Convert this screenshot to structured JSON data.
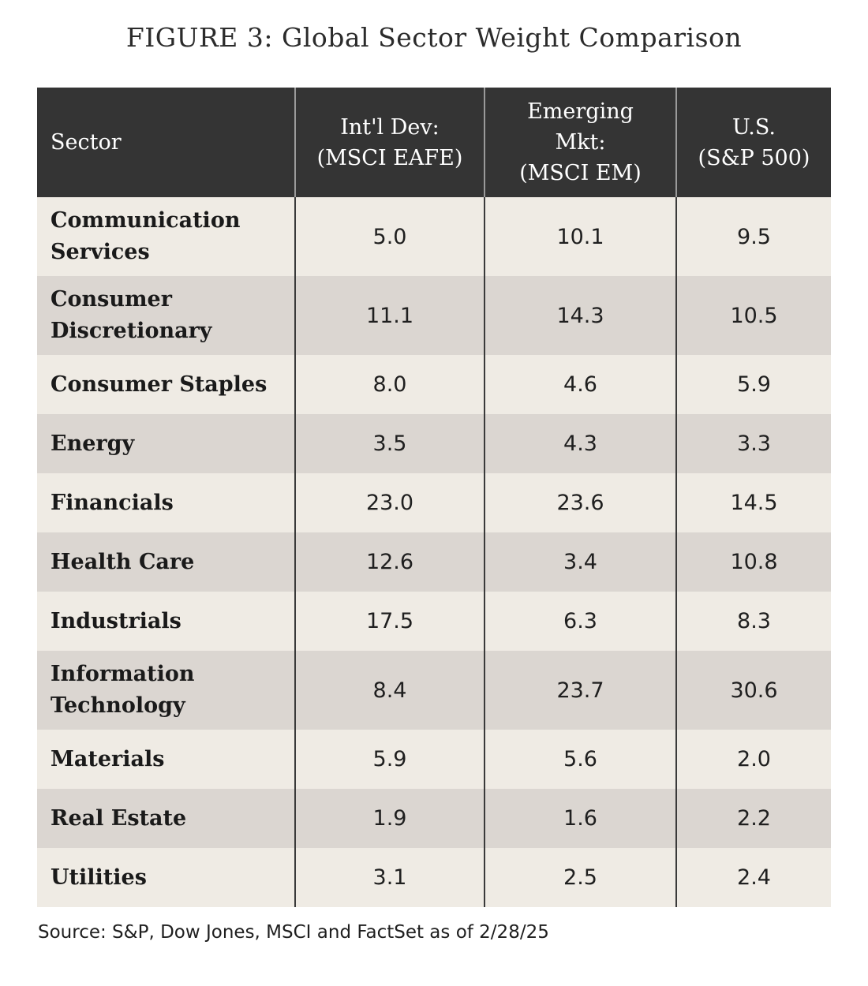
{
  "chart_data": {
    "type": "table",
    "title": "FIGURE 3: Global Sector Weight Comparison",
    "columns": [
      {
        "name": "Sector",
        "lines": [
          "Sector"
        ]
      },
      {
        "name": "Int'l Dev: (MSCI EAFE)",
        "lines": [
          "Int'l Dev:",
          "(MSCI EAFE)"
        ]
      },
      {
        "name": "Emerging Mkt: (MSCI EM)",
        "lines": [
          "Emerging",
          "Mkt:",
          "(MSCI EM)"
        ]
      },
      {
        "name": "U.S. (S&P 500)",
        "lines": [
          "U.S.",
          "(S&P 500)"
        ]
      }
    ],
    "rows": [
      {
        "sector": "Communication Services",
        "sector_lines": [
          "Communication",
          "Services"
        ],
        "values": [
          "5.0",
          "10.1",
          "9.5"
        ]
      },
      {
        "sector": "Consumer Discretionary",
        "sector_lines": [
          "Consumer",
          "Discretionary"
        ],
        "values": [
          "11.1",
          "14.3",
          "10.5"
        ]
      },
      {
        "sector": "Consumer Staples",
        "sector_lines": [
          "Consumer Staples"
        ],
        "values": [
          "8.0",
          "4.6",
          "5.9"
        ]
      },
      {
        "sector": "Energy",
        "sector_lines": [
          "Energy"
        ],
        "values": [
          "3.5",
          "4.3",
          "3.3"
        ]
      },
      {
        "sector": "Financials",
        "sector_lines": [
          "Financials"
        ],
        "values": [
          "23.0",
          "23.6",
          "14.5"
        ]
      },
      {
        "sector": "Health Care",
        "sector_lines": [
          "Health Care"
        ],
        "values": [
          "12.6",
          "3.4",
          "10.8"
        ]
      },
      {
        "sector": "Industrials",
        "sector_lines": [
          "Industrials"
        ],
        "values": [
          "17.5",
          "6.3",
          "8.3"
        ]
      },
      {
        "sector": "Information Technology",
        "sector_lines": [
          "Information",
          "Technology"
        ],
        "values": [
          "8.4",
          "23.7",
          "30.6"
        ]
      },
      {
        "sector": "Materials",
        "sector_lines": [
          "Materials"
        ],
        "values": [
          "5.9",
          "5.6",
          "2.0"
        ]
      },
      {
        "sector": "Real Estate",
        "sector_lines": [
          "Real Estate"
        ],
        "values": [
          "1.9",
          "1.6",
          "2.2"
        ]
      },
      {
        "sector": "Utilities",
        "sector_lines": [
          "Utilities"
        ],
        "values": [
          "3.1",
          "2.5",
          "2.4"
        ]
      }
    ],
    "source": "Source: S&P, Dow Jones, MSCI and FactSet as of 2/28/25"
  },
  "colors": {
    "header_bg": "#343434",
    "row_light": "#efebe4",
    "row_dark": "#dbd6d1"
  }
}
